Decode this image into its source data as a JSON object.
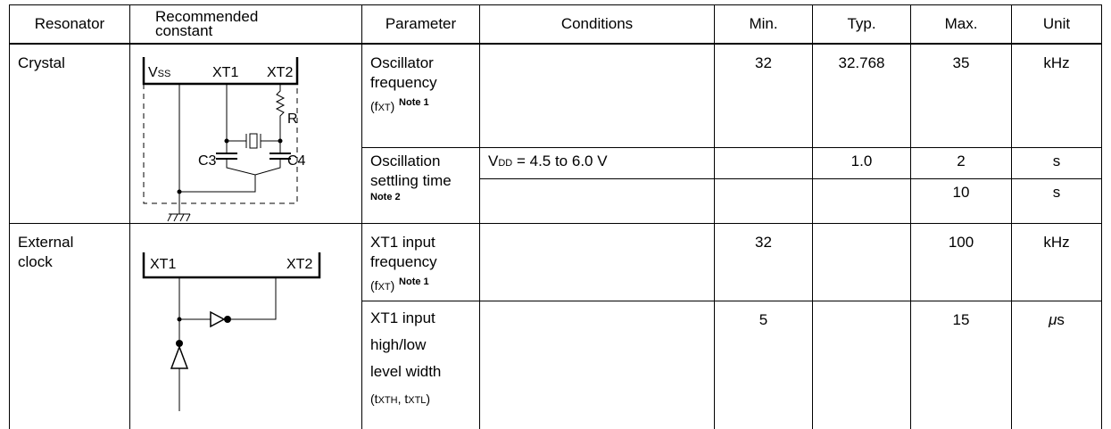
{
  "header": [
    "Resonator",
    [
      "Recommended",
      "constant"
    ],
    "Parameter",
    "Conditions",
    "Min.",
    "Typ.",
    "Max.",
    "Unit"
  ],
  "rows": [
    {
      "resonator": "Crystal",
      "circuit": {
        "vss": [
          "V",
          "SS"
        ],
        "xt1": "XT1",
        "xt2": "XT2",
        "r": "R",
        "c3": "C3",
        "c4": "C4"
      },
      "parameters": [
        {
          "name": [
            "Oscillator",
            "frequency"
          ],
          "symbol": [
            "(f",
            "XT",
            ")"
          ],
          "note": "Note 1",
          "min": "32",
          "typ": "32.768",
          "max": "35",
          "unit": "kHz"
        },
        {
          "name": [
            "Oscillation",
            "settling time"
          ],
          "note": "Note 2",
          "lines": [
            {
              "conditions": [
                "V",
                "DD",
                " = 4.5 to 6.0 V"
              ],
              "typ": "1.0",
              "max": "2",
              "unit": "s"
            },
            {
              "max": "10",
              "unit": "s"
            }
          ]
        }
      ]
    },
    {
      "resonator": [
        "External",
        "clock"
      ],
      "circuit": {
        "xt1": "XT1",
        "xt2": "XT2"
      },
      "parameters": [
        {
          "name": [
            "XT1 input",
            "frequency"
          ],
          "symbol": [
            "(f",
            "XT",
            ")"
          ],
          "note": "Note 1",
          "min": "32",
          "max": "100",
          "unit": "kHz"
        },
        {
          "name": [
            "XT1 input",
            "high/low",
            "level width"
          ],
          "symbol": [
            "(t",
            "XTH",
            ", t",
            "XTL",
            ")"
          ],
          "min": "5",
          "max": "15",
          "unit": [
            "μ",
            "s"
          ]
        }
      ]
    }
  ]
}
